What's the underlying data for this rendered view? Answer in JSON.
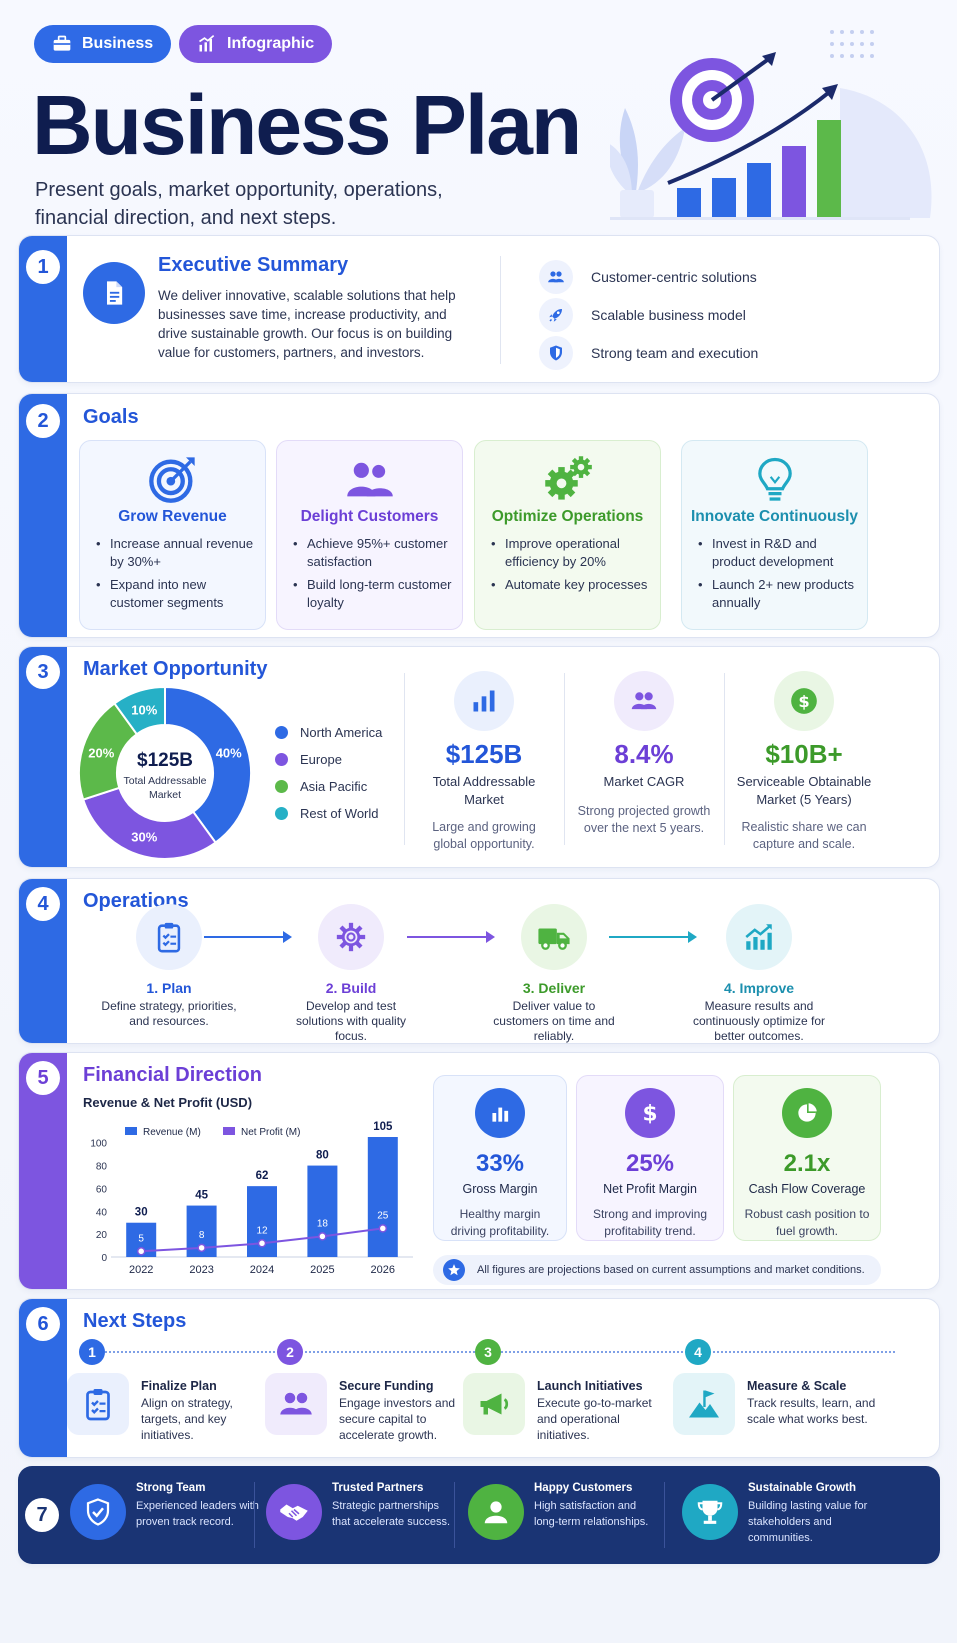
{
  "header": {
    "tags": [
      "Business",
      "Infographic"
    ],
    "title": "Business Plan",
    "subtitle": "Present goals, market opportunity, operations, financial direction, and next steps."
  },
  "colors": {
    "navy": "#0f1d4f",
    "blue": "#2e6ae4",
    "purple": "#7d55e0",
    "green": "#4fb341",
    "teal": "#1fa8c4"
  },
  "executive": {
    "number": "1",
    "title": "Executive Summary",
    "text": "We deliver innovative, scalable solutions that help businesses save time, increase productivity, and drive sustainable growth. Our focus is on building value for customers, partners, and investors.",
    "features": [
      {
        "icon": "users-icon",
        "label": "Customer-centric solutions"
      },
      {
        "icon": "rocket-icon",
        "label": "Scalable business model"
      },
      {
        "icon": "shield-icon",
        "label": "Strong team and execution"
      }
    ]
  },
  "goals": {
    "number": "2",
    "title": "Goals",
    "items": [
      {
        "title": "Grow Revenue",
        "icon": "target-icon",
        "bullets": [
          "Increase annual revenue by 30%+",
          "Expand into new customer segments"
        ]
      },
      {
        "title": "Delight Customers",
        "icon": "users-icon",
        "bullets": [
          "Achieve 95%+ customer satisfaction",
          "Build long-term customer loyalty"
        ]
      },
      {
        "title": "Optimize Operations",
        "icon": "gears-icon",
        "bullets": [
          "Improve operational efficiency by 20%",
          "Automate key processes"
        ]
      },
      {
        "title": "Innovate Continuously",
        "icon": "lightbulb-icon",
        "bullets": [
          "Invest in R&D and product development",
          "Launch 2+ new products annually"
        ]
      }
    ]
  },
  "market": {
    "number": "3",
    "title": "Market Opportunity",
    "donut_value": "$125B",
    "donut_label": "Total Addressable Market",
    "segments": [
      {
        "name": "North America",
        "value": 40,
        "label": "40%",
        "color": "#2e6ae4"
      },
      {
        "name": "Europe",
        "value": 30,
        "label": "30%",
        "color": "#7d55e0"
      },
      {
        "name": "Asia Pacific",
        "value": 20,
        "label": "20%",
        "color": "#5cb94a"
      },
      {
        "name": "Rest of World",
        "value": 10,
        "label": "10%",
        "color": "#26b0c6"
      }
    ],
    "stats": [
      {
        "value": "$125B",
        "label": "Total Addressable Market",
        "desc": "Large and growing global opportunity.",
        "icon": "bar-chart-icon"
      },
      {
        "value": "8.4%",
        "label": "Market CAGR",
        "desc": "Strong projected growth over the next 5 years.",
        "icon": "users-icon"
      },
      {
        "value": "$10B+",
        "label": "Serviceable Obtainable Market (5 Years)",
        "desc": "Realistic share we can capture and scale.",
        "icon": "dollar-icon"
      }
    ]
  },
  "operations": {
    "number": "4",
    "title": "Operations",
    "steps": [
      {
        "title": "1. Plan",
        "desc": "Define strategy, priorities, and resources.",
        "icon": "clipboard-icon"
      },
      {
        "title": "2. Build",
        "desc": "Develop and test solutions with quality focus.",
        "icon": "gear-icon"
      },
      {
        "title": "3. Deliver",
        "desc": "Deliver value to customers on time and reliably.",
        "icon": "truck-icon"
      },
      {
        "title": "4. Improve",
        "desc": "Measure results and continuously optimize for better outcomes.",
        "icon": "trend-icon"
      }
    ]
  },
  "financial": {
    "number": "5",
    "title": "Financial Direction",
    "kpis": [
      {
        "value": "33%",
        "label": "Gross Margin",
        "desc": "Healthy margin driving profitability.",
        "icon": "bar-chart-icon"
      },
      {
        "value": "25%",
        "label": "Net Profit Margin",
        "desc": "Strong and improving profitability trend.",
        "icon": "dollar-icon"
      },
      {
        "value": "2.1x",
        "label": "Cash Flow Coverage",
        "desc": "Robust cash position to fuel growth.",
        "icon": "pie-icon"
      }
    ],
    "note": "All figures are projections based on current assumptions and market conditions."
  },
  "chart_data": {
    "type": "bar",
    "title": "Revenue & Net Profit (USD)",
    "categories": [
      "2022",
      "2023",
      "2024",
      "2025",
      "2026"
    ],
    "series": [
      {
        "name": "Revenue (M)",
        "type": "bar",
        "values": [
          30,
          45,
          62,
          80,
          105
        ],
        "color": "#2e6ae4"
      },
      {
        "name": "Net Profit (M)",
        "type": "line",
        "values": [
          5,
          8,
          12,
          18,
          25
        ],
        "color": "#7d55e0"
      }
    ],
    "yticks": [
      0,
      20,
      40,
      60,
      80,
      100
    ],
    "ylim": [
      0,
      105
    ],
    "legend": "top-left",
    "grid": false
  },
  "next_steps": {
    "number": "6",
    "title": "Next Steps",
    "items": [
      {
        "num": "1",
        "title": "Finalize Plan",
        "desc": "Align on strategy, targets, and key initiatives.",
        "icon": "clipboard-icon"
      },
      {
        "num": "2",
        "title": "Secure Funding",
        "desc": "Engage investors and secure capital to accelerate growth.",
        "icon": "users-icon"
      },
      {
        "num": "3",
        "title": "Launch Initiatives",
        "desc": "Execute go-to-market and operational initiatives.",
        "icon": "megaphone-icon"
      },
      {
        "num": "4",
        "title": "Measure & Scale",
        "desc": "Track results, learn, and scale what works best.",
        "icon": "flag-icon"
      }
    ]
  },
  "pillars": {
    "number": "7",
    "items": [
      {
        "title": "Strong Team",
        "desc": "Experienced leaders with proven track record.",
        "icon": "shield-icon"
      },
      {
        "title": "Trusted Partners",
        "desc": "Strategic partnerships that accelerate success.",
        "icon": "handshake-icon"
      },
      {
        "title": "Happy Customers",
        "desc": "High satisfaction and long-term relationships.",
        "icon": "user-icon"
      },
      {
        "title": "Sustainable Growth",
        "desc": "Building lasting value for stakeholders and communities.",
        "icon": "trophy-icon"
      }
    ]
  }
}
